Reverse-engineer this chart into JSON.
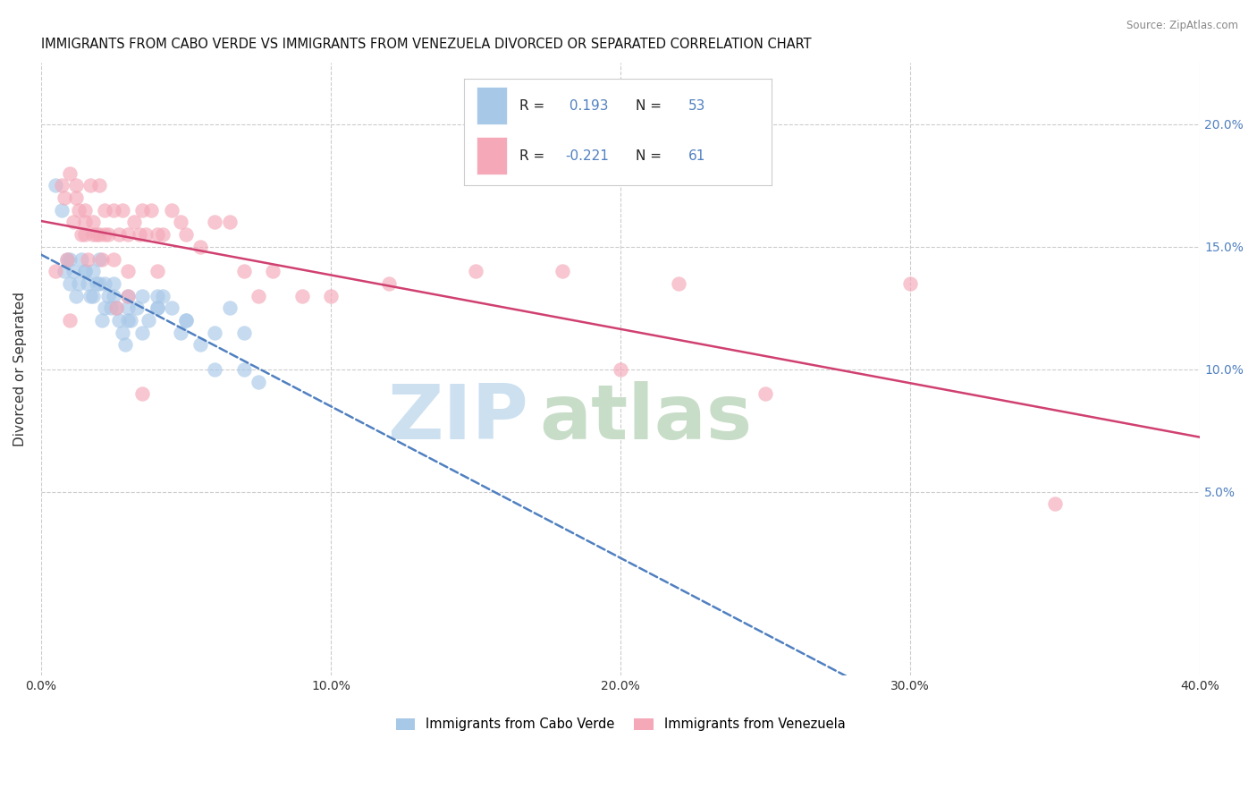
{
  "title": "IMMIGRANTS FROM CABO VERDE VS IMMIGRANTS FROM VENEZUELA DIVORCED OR SEPARATED CORRELATION CHART",
  "source": "Source: ZipAtlas.com",
  "ylabel": "Divorced or Separated",
  "xlim": [
    0.0,
    0.4
  ],
  "ylim": [
    -0.025,
    0.225
  ],
  "r_cabo": 0.193,
  "r_venezuela": -0.221,
  "n_cabo": 53,
  "n_venezuela": 61,
  "color_cabo": "#a8c8e8",
  "color_venezuela": "#f4a8b8",
  "line_color_cabo": "#5080c0",
  "line_color_venezuela": "#d04070",
  "background_color": "#ffffff",
  "grid_color": "#cccccc",
  "cabo_x": [
    0.005,
    0.007,
    0.008,
    0.009,
    0.01,
    0.011,
    0.012,
    0.013,
    0.014,
    0.015,
    0.016,
    0.017,
    0.018,
    0.019,
    0.02,
    0.021,
    0.022,
    0.023,
    0.024,
    0.025,
    0.026,
    0.027,
    0.028,
    0.029,
    0.03,
    0.031,
    0.033,
    0.035,
    0.037,
    0.04,
    0.042,
    0.045,
    0.048,
    0.05,
    0.055,
    0.06,
    0.065,
    0.07,
    0.075,
    0.015,
    0.018,
    0.022,
    0.025,
    0.03,
    0.035,
    0.04,
    0.05,
    0.06,
    0.07,
    0.01,
    0.02,
    0.03,
    0.04
  ],
  "cabo_y": [
    0.175,
    0.165,
    0.14,
    0.145,
    0.135,
    0.14,
    0.13,
    0.135,
    0.145,
    0.14,
    0.135,
    0.13,
    0.14,
    0.135,
    0.145,
    0.12,
    0.135,
    0.13,
    0.125,
    0.13,
    0.125,
    0.12,
    0.115,
    0.11,
    0.125,
    0.12,
    0.125,
    0.13,
    0.12,
    0.125,
    0.13,
    0.125,
    0.115,
    0.12,
    0.11,
    0.1,
    0.125,
    0.115,
    0.095,
    0.14,
    0.13,
    0.125,
    0.135,
    0.12,
    0.115,
    0.13,
    0.12,
    0.115,
    0.1,
    0.145,
    0.135,
    0.13,
    0.125
  ],
  "venezuela_x": [
    0.005,
    0.007,
    0.008,
    0.009,
    0.01,
    0.011,
    0.012,
    0.013,
    0.014,
    0.015,
    0.016,
    0.017,
    0.018,
    0.019,
    0.02,
    0.021,
    0.022,
    0.023,
    0.025,
    0.027,
    0.028,
    0.03,
    0.032,
    0.034,
    0.035,
    0.036,
    0.038,
    0.04,
    0.042,
    0.045,
    0.048,
    0.05,
    0.055,
    0.06,
    0.065,
    0.07,
    0.075,
    0.08,
    0.09,
    0.1,
    0.12,
    0.15,
    0.18,
    0.2,
    0.22,
    0.25,
    0.3,
    0.35,
    0.015,
    0.02,
    0.025,
    0.03,
    0.018,
    0.022,
    0.026,
    0.03,
    0.035,
    0.04,
    0.01,
    0.012,
    0.015
  ],
  "venezuela_y": [
    0.14,
    0.175,
    0.17,
    0.145,
    0.18,
    0.16,
    0.175,
    0.165,
    0.155,
    0.16,
    0.145,
    0.175,
    0.16,
    0.155,
    0.175,
    0.145,
    0.165,
    0.155,
    0.165,
    0.155,
    0.165,
    0.155,
    0.16,
    0.155,
    0.165,
    0.155,
    0.165,
    0.155,
    0.155,
    0.165,
    0.16,
    0.155,
    0.15,
    0.16,
    0.16,
    0.14,
    0.13,
    0.14,
    0.13,
    0.13,
    0.135,
    0.14,
    0.14,
    0.1,
    0.135,
    0.09,
    0.135,
    0.045,
    0.165,
    0.155,
    0.145,
    0.14,
    0.155,
    0.155,
    0.125,
    0.13,
    0.09,
    0.14,
    0.12,
    0.17,
    0.155
  ],
  "watermark_zip_color": "#cce0f0",
  "watermark_atlas_color": "#c8ddc8"
}
